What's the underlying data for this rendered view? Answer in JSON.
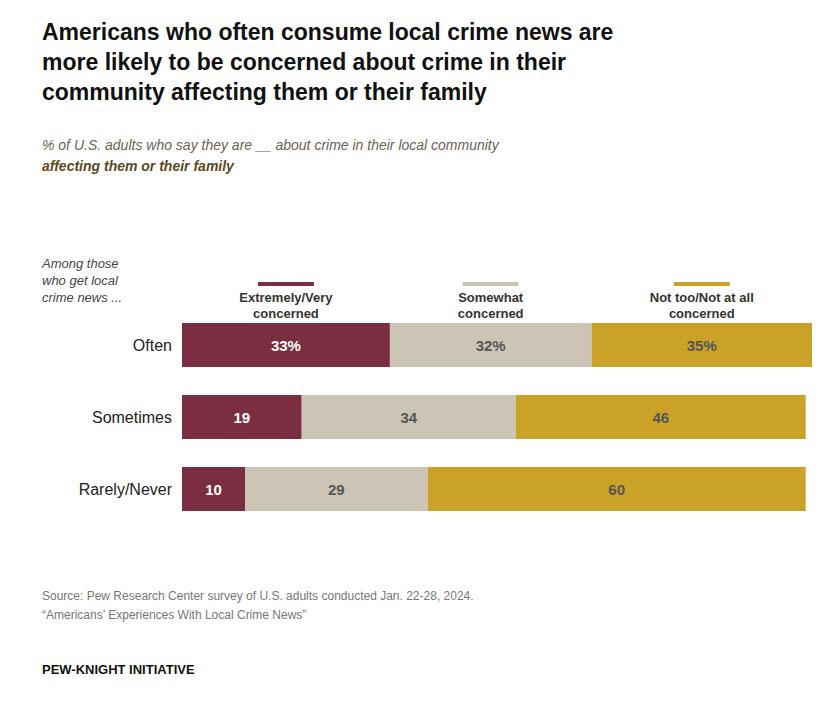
{
  "chart_data": {
    "type": "bar",
    "orientation": "horizontal",
    "stacked": true,
    "data_labels": true,
    "tick_labels": "y",
    "title": "Americans who often consume local crime news are\nmore likely to be concerned about crime in their\ncommunity affecting them or their family",
    "subtitle": "% of U.S. adults who say they are __ about crime in their local community\naffecting them or their family",
    "ylabel": "Among those\nwho get local\ncrime news ...",
    "annotations": [
      "Source: Pew Research Center survey of U.S. adults conducted Jan. 22-28, 2024.\n“Americans’ Experiences With Local Crime News”",
      "PEW-KNIGHT INITIATIVE"
    ],
    "categories": [
      "Often",
      "Sometimes",
      "Rarely/Never"
    ],
    "series": [
      {
        "name": "Extremely/Very\nconcerned",
        "color": "#7b2d42",
        "values": [
          33,
          19,
          10
        ],
        "value_labels": [
          "33%",
          "19",
          "10"
        ]
      },
      {
        "name": "Somewhat\nconcerned",
        "color": "#ccc5b5",
        "values": [
          32,
          34,
          29
        ],
        "value_labels": [
          "32%",
          "34",
          "29"
        ]
      },
      {
        "name": "Not too/Not at all\nconcerned",
        "color": "#c9a227",
        "values": [
          35,
          46,
          60
        ],
        "value_labels": [
          "35%",
          "46",
          "60"
        ]
      }
    ],
    "xlim": [
      0,
      100
    ]
  }
}
